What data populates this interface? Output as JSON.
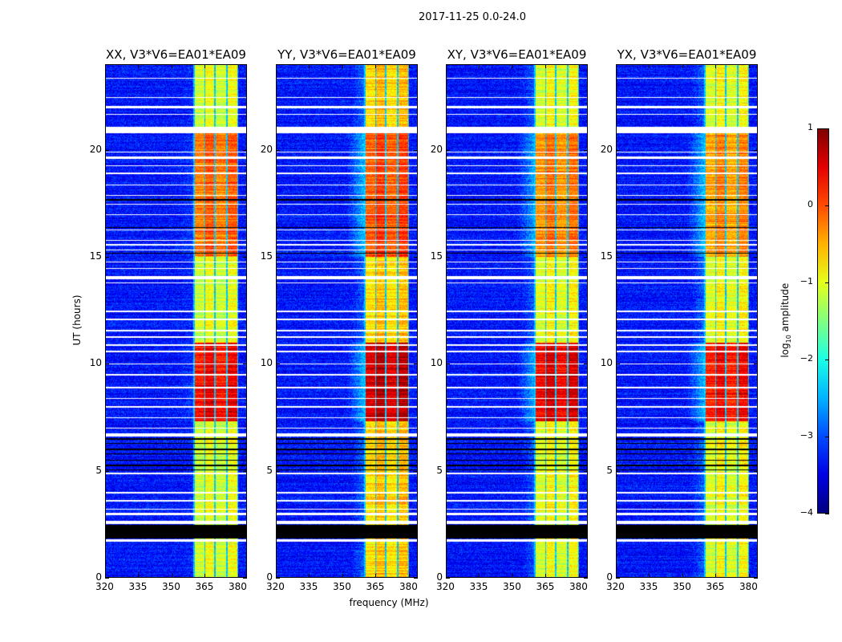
{
  "chart_data": {
    "type": "heatmap",
    "title": "2017-11-25 0.0-24.0",
    "xlabel": "frequency (MHz)",
    "ylabel": "UT (hours)",
    "xlim": [
      320,
      384
    ],
    "ylim": [
      0,
      24
    ],
    "xticks": [
      320,
      335,
      350,
      365,
      380
    ],
    "yticks": [
      0,
      5,
      10,
      15,
      20
    ],
    "colormap": "jet",
    "colorbar": {
      "label_main": "log",
      "label_sub": "10",
      "label_rest": " amplitude",
      "range": [
        -4,
        1
      ],
      "ticks": [
        1,
        0,
        -1,
        -2,
        -3,
        -4
      ],
      "tick_labels": [
        "1",
        "0",
        "−1",
        "−2",
        "−3",
        "−4"
      ]
    },
    "background_level": -3.3,
    "subbands_mhz": [
      [
        360.5,
        365
      ],
      [
        365.5,
        369.5
      ],
      [
        370,
        375
      ],
      [
        375.5,
        380
      ]
    ],
    "flagged_white_hours": [
      [
        23.4,
        23.35
      ],
      [
        22.5,
        22.45
      ],
      [
        22.1,
        21.95
      ],
      [
        21.7,
        21.65
      ],
      [
        21.1,
        20.8
      ],
      [
        19.95,
        19.9
      ],
      [
        19.7,
        19.6
      ],
      [
        19.3,
        19.25
      ],
      [
        18.95,
        18.9
      ],
      [
        18.4,
        18.35
      ],
      [
        17.9,
        17.85
      ],
      [
        17.5,
        17.45
      ],
      [
        17.0,
        16.95
      ],
      [
        16.3,
        16.25
      ],
      [
        15.8,
        15.75
      ],
      [
        15.6,
        15.55
      ],
      [
        15.35,
        15.3
      ],
      [
        14.8,
        14.75
      ],
      [
        14.5,
        14.45
      ],
      [
        14.1,
        13.95
      ],
      [
        13.8,
        13.75
      ],
      [
        12.5,
        12.4
      ],
      [
        12.1,
        12.05
      ],
      [
        11.6,
        11.5
      ],
      [
        11.3,
        11.2
      ],
      [
        10.9,
        10.85
      ],
      [
        10.6,
        10.55
      ],
      [
        10.0,
        9.95
      ],
      [
        9.5,
        9.45
      ],
      [
        8.9,
        8.85
      ],
      [
        8.4,
        8.35
      ],
      [
        8.0,
        7.95
      ],
      [
        7.5,
        7.45
      ],
      [
        7.0,
        6.95
      ],
      [
        6.75,
        6.6
      ],
      [
        4.9,
        4.8
      ],
      [
        4.0,
        3.9
      ],
      [
        3.6,
        3.55
      ],
      [
        3.2,
        3.15
      ],
      [
        3.0,
        2.9
      ],
      [
        2.65,
        2.5
      ],
      [
        1.75,
        1.65
      ]
    ],
    "flagged_black_hours": [
      [
        2.45,
        1.8
      ],
      [
        6.5,
        6.45
      ],
      [
        6.3,
        6.25
      ],
      [
        6.0,
        5.95
      ],
      [
        5.8,
        5.75
      ],
      [
        5.5,
        5.45
      ],
      [
        5.25,
        5.2
      ],
      [
        5.05,
        5.0
      ],
      [
        17.7,
        17.65
      ],
      [
        16.4,
        16.35
      ],
      [
        15.2,
        15.15
      ],
      [
        23.1,
        23.08
      ],
      [
        20.4,
        20.38
      ],
      [
        19.5,
        19.48
      ]
    ],
    "panels": [
      {
        "title": "XX, V3*V6=EA01*EA09",
        "band_quiet": -1.1,
        "band_active_7_11": 0.35,
        "band_active_15_21": -0.2,
        "halo": 0.2
      },
      {
        "title": "YY, V3*V6=EA01*EA09",
        "band_quiet": -0.7,
        "band_active_7_11": 0.6,
        "band_active_15_21": -0.05,
        "halo": 0.9
      },
      {
        "title": "XY, V3*V6=EA01*EA09",
        "band_quiet": -1.0,
        "band_active_7_11": 0.45,
        "band_active_15_21": -0.3,
        "halo": 0.8
      },
      {
        "title": "YX, V3*V6=EA01*EA09",
        "band_quiet": -1.0,
        "band_active_7_11": 0.3,
        "band_active_15_21": -0.4,
        "halo": 0.9
      }
    ]
  }
}
